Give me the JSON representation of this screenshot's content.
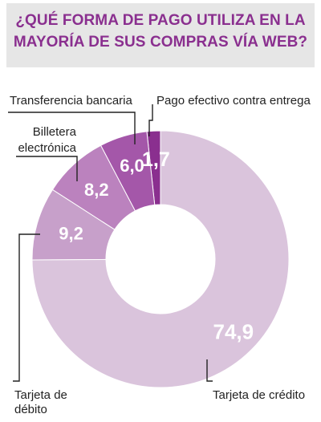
{
  "chart_data": {
    "type": "pie",
    "title": "¿QUÉ FORMA DE PAGO UTILIZA EN LA MAYORÍA DE SUS COMPRAS VÍA WEB?",
    "slices": [
      {
        "label": "Pago efectivo contra entrega",
        "value": 1.7,
        "display": "1,7",
        "color": "#8a2f8f"
      },
      {
        "label": "Transferencia bancaria",
        "value": 6.0,
        "display": "6,0",
        "color": "#a457a9"
      },
      {
        "label": "Billetera electrónica",
        "value": 8.2,
        "display": "8,2",
        "color": "#bb82be"
      },
      {
        "label": "Tarjeta de débito",
        "value": 9.2,
        "display": "9,2",
        "color": "#c7a0ca"
      },
      {
        "label": "Tarjeta de crédito",
        "value": 74.9,
        "display": "74,9",
        "color": "#dac4dc"
      }
    ]
  }
}
